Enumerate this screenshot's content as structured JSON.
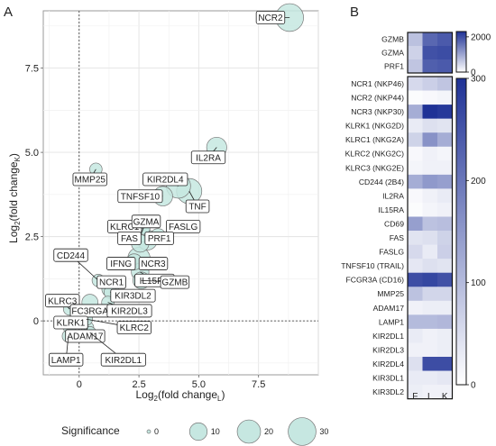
{
  "panel_a": {
    "letter": "A",
    "chart_data": {
      "type": "scatter",
      "x_range": [
        -1.5,
        10
      ],
      "y_range": [
        -1.6,
        9.2
      ],
      "x_ticks": [
        0,
        2.5,
        5.0,
        7.5
      ],
      "x_tick_labels": [
        "0",
        "2.5",
        "5.0",
        "7.5"
      ],
      "y_ticks": [
        0,
        2.5,
        5.0,
        7.5
      ],
      "y_tick_labels": [
        "0",
        "2.5",
        "5.0",
        "7.5"
      ],
      "xlabel": {
        "base": "Log",
        "sub2": "2",
        "mid": "(fold change",
        "subL": "L",
        "end": ")"
      },
      "ylabel": {
        "base": "Log",
        "sub2": "2",
        "mid": "(fold change",
        "subK": "K",
        "end": ")"
      },
      "grid": true,
      "point_color": "#c6e7e1",
      "points": [
        {
          "gene": "NCR2",
          "x": 8.8,
          "y": 9.0,
          "sig": 30,
          "lx": 8.0,
          "ly": 9.0
        },
        {
          "gene": "IL2RA",
          "x": 5.75,
          "y": 5.15,
          "sig": 14,
          "lx": 5.4,
          "ly": 4.85
        },
        {
          "gene": "MMP25",
          "x": 0.7,
          "y": 4.5,
          "sig": 4,
          "lx": 0.45,
          "ly": 4.2
        },
        {
          "gene": "KIR2DL4",
          "x": 4.15,
          "y": 4.0,
          "sig": 22,
          "lx": 3.6,
          "ly": 4.2
        },
        {
          "gene": "TNFSF10",
          "x": 3.5,
          "y": 3.7,
          "sig": 13,
          "lx": 2.55,
          "ly": 3.7
        },
        {
          "gene": "TNF",
          "x": 4.6,
          "y": 3.85,
          "sig": 24,
          "lx": 4.95,
          "ly": 3.4
        },
        {
          "gene": "KLRC1",
          "x": 2.7,
          "y": 2.75,
          "sig": 4,
          "lx": 1.9,
          "ly": 2.8
        },
        {
          "gene": "GZMA",
          "x": 2.6,
          "y": 2.6,
          "sig": 10,
          "lx": 2.8,
          "ly": 2.95
        },
        {
          "gene": "FASLG",
          "x": 3.3,
          "y": 2.5,
          "sig": 8,
          "lx": 4.35,
          "ly": 2.8
        },
        {
          "gene": "FAS",
          "x": 2.55,
          "y": 2.3,
          "sig": 10,
          "lx": 2.1,
          "ly": 2.45
        },
        {
          "gene": "PRF1",
          "x": 2.85,
          "y": 2.4,
          "sig": 14,
          "lx": 3.35,
          "ly": 2.45
        },
        {
          "gene": "IFNG",
          "x": 2.3,
          "y": 1.75,
          "sig": 8,
          "lx": 1.75,
          "ly": 1.7
        },
        {
          "gene": "NCR3",
          "x": 2.5,
          "y": 1.85,
          "sig": 18,
          "lx": 3.1,
          "ly": 1.7
        },
        {
          "gene": "CD244",
          "x": 0.8,
          "y": 1.2,
          "sig": 4,
          "lx": -0.35,
          "ly": 1.95
        },
        {
          "gene": "IL15RA",
          "x": 2.55,
          "y": 1.45,
          "sig": 10,
          "lx": 3.15,
          "ly": 1.2
        },
        {
          "gene": "NCR1",
          "x": 1.3,
          "y": 0.95,
          "sig": 9,
          "lx": 1.35,
          "ly": 1.15
        },
        {
          "gene": "GZMB",
          "x": 2.6,
          "y": 1.2,
          "sig": 9,
          "lx": 4.0,
          "ly": 1.15
        },
        {
          "gene": "KIR3DL2",
          "x": 1.3,
          "y": 0.85,
          "sig": 4,
          "lx": 2.25,
          "ly": 0.75
        },
        {
          "gene": "KLRC3",
          "x": -0.4,
          "y": 0.35,
          "sig": 4,
          "lx": -0.7,
          "ly": 0.6
        },
        {
          "gene": "FC3RGA",
          "x": 0.45,
          "y": 0.55,
          "sig": 8,
          "lx": 0.45,
          "ly": 0.3
        },
        {
          "gene": "KIR2DL3",
          "x": 1.2,
          "y": 0.55,
          "sig": 4,
          "lx": 2.1,
          "ly": 0.3
        },
        {
          "gene": "KLRK1",
          "x": -0.4,
          "y": -0.2,
          "sig": 4,
          "lx": -0.35,
          "ly": -0.05
        },
        {
          "gene": "ADAM17",
          "x": 0.35,
          "y": -0.2,
          "sig": 4,
          "lx": 0.25,
          "ly": -0.45
        },
        {
          "gene": "KLRC2",
          "x": 0.3,
          "y": 0.05,
          "sig": 4,
          "lx": 2.3,
          "ly": -0.2
        },
        {
          "gene": "LAMP1",
          "x": -0.45,
          "y": -0.45,
          "sig": 4,
          "lx": -0.55,
          "ly": -1.15
        },
        {
          "gene": "KIR2DL1",
          "x": 0.45,
          "y": -0.35,
          "sig": 4,
          "lx": 1.85,
          "ly": -1.15
        }
      ],
      "legend": {
        "title": "Significance",
        "entries": [
          {
            "label": "0",
            "sig": 0
          },
          {
            "label": "10",
            "sig": 10
          },
          {
            "label": "20",
            "sig": 20
          },
          {
            "label": "30",
            "sig": 30
          }
        ]
      }
    }
  },
  "panel_b": {
    "letter": "B",
    "chart_data": {
      "type": "heatmap",
      "columns": [
        "F",
        "L",
        "K"
      ],
      "color_low": "#ffffff",
      "color_high": "#1f3296",
      "top_block": {
        "rows": [
          "GZMB",
          "GZMA",
          "PRF1"
        ],
        "values": [
          [
            700,
            1700,
            1850
          ],
          [
            500,
            1950,
            2000
          ],
          [
            650,
            1800,
            1850
          ]
        ],
        "scale": [
          0,
          2300
        ],
        "scale_ticks": [
          0,
          2000
        ],
        "scale_tick_labels": [
          "0",
          "2000"
        ]
      },
      "bottom_block": {
        "rows": [
          "NCR1 (NKP46)",
          "NCR2 (NKP44)",
          "NCR3 (NKP30)",
          "KLRK1 (NKG2D)",
          "KLRC1 (NKG2A)",
          "KLRC2 (NKG2C)",
          "KLRC3 (NKG2E)",
          "CD244 (2B4)",
          "IL2RA",
          "IL15RA",
          "CD69",
          "FAS",
          "FASLG",
          "TNFSF10 (TRAIL)",
          "FCGR3A (CD16)",
          "MMP25",
          "ADAM17",
          "LAMP1",
          "KIR2DL1",
          "KIR2DL3",
          "KIR2DL4",
          "KIR3DL1",
          "KIR3DL2"
        ],
        "values": [
          [
            55,
            70,
            85
          ],
          [
            5,
            10,
            15
          ],
          [
            120,
            300,
            290
          ],
          [
            30,
            45,
            40
          ],
          [
            65,
            160,
            120
          ],
          [
            10,
            20,
            15
          ],
          [
            15,
            20,
            20
          ],
          [
            120,
            150,
            140
          ],
          [
            10,
            20,
            30
          ],
          [
            5,
            15,
            20
          ],
          [
            140,
            90,
            95
          ],
          [
            40,
            45,
            65
          ],
          [
            55,
            30,
            70
          ],
          [
            35,
            45,
            40
          ],
          [
            260,
            270,
            255
          ],
          [
            90,
            60,
            60
          ],
          [
            20,
            25,
            25
          ],
          [
            100,
            100,
            105
          ],
          [
            30,
            20,
            25
          ],
          [
            20,
            20,
            25
          ],
          [
            45,
            260,
            260
          ],
          [
            30,
            30,
            35
          ],
          [
            25,
            20,
            20
          ]
        ],
        "scale": [
          0,
          300
        ],
        "scale_ticks": [
          0,
          100,
          200,
          300
        ],
        "scale_tick_labels": [
          "0",
          "100",
          "200",
          "300"
        ]
      }
    }
  }
}
